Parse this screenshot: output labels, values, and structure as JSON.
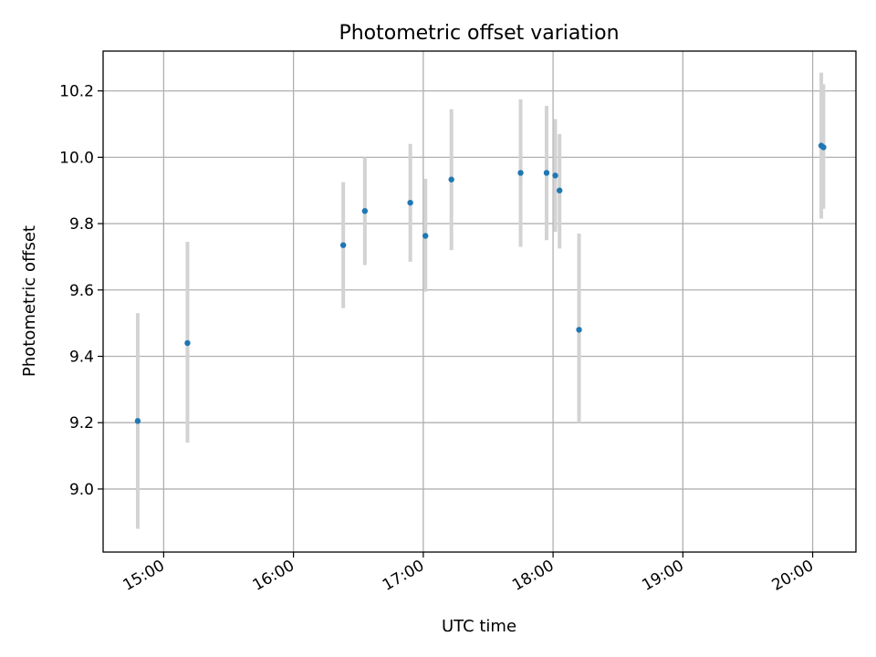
{
  "chart_data": {
    "type": "scatter",
    "title": "Photometric offset variation",
    "xlabel": "UTC time",
    "ylabel": "Photometric offset",
    "grid": true,
    "legend": "none",
    "xlim": [
      "14:32",
      "20:20"
    ],
    "ylim": [
      8.81,
      10.32
    ],
    "xticks": [
      "15:00",
      "16:00",
      "17:00",
      "18:00",
      "19:00",
      "20:00"
    ],
    "yticks": [
      "9.0",
      "9.2",
      "9.4",
      "9.6",
      "9.8",
      "10.0",
      "10.2"
    ],
    "series": [
      {
        "marker_color": "#1f77b4",
        "errorbar_color": "#d3d3d3",
        "points": [
          {
            "x": "14:48",
            "y": 9.205,
            "ylow": 8.88,
            "yhigh": 9.53
          },
          {
            "x": "15:11",
            "y": 9.44,
            "ylow": 9.14,
            "yhigh": 9.745
          },
          {
            "x": "16:23",
            "y": 9.735,
            "ylow": 9.545,
            "yhigh": 9.925
          },
          {
            "x": "16:33",
            "y": 9.838,
            "ylow": 9.675,
            "yhigh": 10.0
          },
          {
            "x": "16:54",
            "y": 9.863,
            "ylow": 9.685,
            "yhigh": 10.04
          },
          {
            "x": "17:01",
            "y": 9.763,
            "ylow": 9.595,
            "yhigh": 9.935
          },
          {
            "x": "17:13",
            "y": 9.933,
            "ylow": 9.72,
            "yhigh": 10.145
          },
          {
            "x": "17:45",
            "y": 9.953,
            "ylow": 9.73,
            "yhigh": 10.175
          },
          {
            "x": "17:57",
            "y": 9.953,
            "ylow": 9.75,
            "yhigh": 10.155
          },
          {
            "x": "18:01",
            "y": 9.945,
            "ylow": 9.775,
            "yhigh": 10.115
          },
          {
            "x": "18:03",
            "y": 9.9,
            "ylow": 9.725,
            "yhigh": 10.07
          },
          {
            "x": "18:12",
            "y": 9.48,
            "ylow": 9.2,
            "yhigh": 9.77
          },
          {
            "x": "20:04",
            "y": 10.035,
            "ylow": 9.815,
            "yhigh": 10.255
          },
          {
            "x": "20:05",
            "y": 10.03,
            "ylow": 9.845,
            "yhigh": 10.22
          }
        ]
      }
    ]
  }
}
